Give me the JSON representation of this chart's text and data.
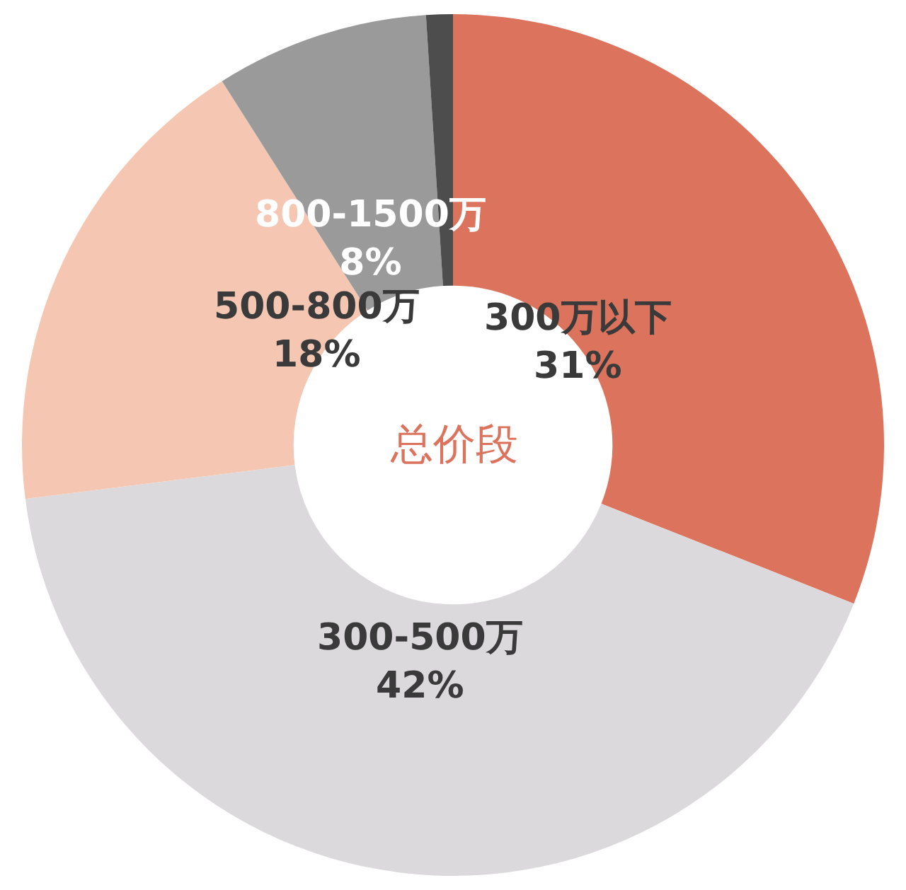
{
  "chart_data": {
    "type": "donut",
    "categories": [
      "300万以下",
      "300-500万",
      "500-800万",
      "800-1500万",
      null
    ],
    "values": [
      31,
      42,
      18,
      8,
      1
    ],
    "colors": [
      "#dc735d",
      "#dcd9dc",
      "#f5c7b3",
      "#9a9a9a",
      "#4d4d4d"
    ],
    "value_labels": [
      "31%",
      "42%",
      "18%",
      "8%",
      null
    ],
    "annotations": [
      {
        "text": "总价段"
      }
    ],
    "legend": false
  }
}
